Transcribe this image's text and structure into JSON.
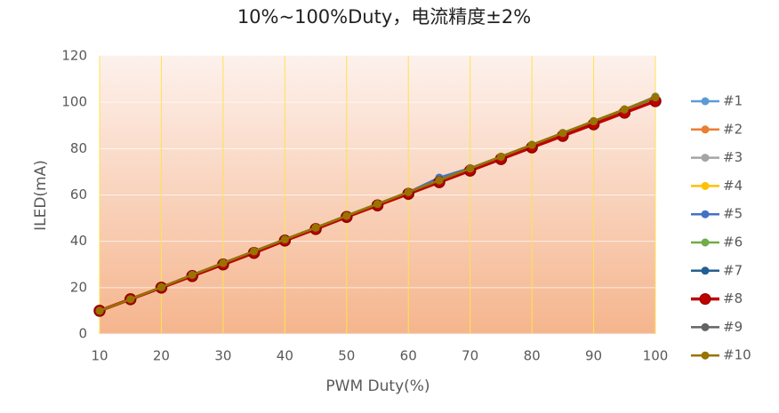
{
  "chart_data": {
    "type": "line",
    "title": "10%~100%Duty，电流精度±2%",
    "x_label": "PWM Duty(%)",
    "y_label": "ILED(mA)",
    "x": [
      10,
      15,
      20,
      25,
      30,
      35,
      40,
      45,
      50,
      55,
      60,
      65,
      70,
      75,
      80,
      85,
      90,
      95,
      100
    ],
    "xlim": [
      10,
      100
    ],
    "xticks": [
      10,
      20,
      30,
      40,
      50,
      60,
      70,
      80,
      90,
      100
    ],
    "ylim": [
      0,
      120
    ],
    "yticks": [
      0,
      20,
      40,
      60,
      80,
      100,
      120
    ],
    "grid": true,
    "legend": "right",
    "series": [
      {
        "name": "#1",
        "color": "#5b9bd5",
        "values": [
          10,
          15,
          20.2,
          25.5,
          30.6,
          35.7,
          40.8,
          45.9,
          51,
          56.1,
          61.2,
          66.3,
          71.4,
          76.5,
          81.6,
          86.7,
          91.8,
          96.9,
          102.5
        ]
      },
      {
        "name": "#2",
        "color": "#ed7d31",
        "values": [
          10,
          15,
          20.1,
          25.4,
          30.5,
          35.6,
          40.7,
          45.8,
          50.9,
          56,
          61.1,
          66.2,
          71.3,
          76.4,
          81.5,
          86.6,
          91.7,
          96.8,
          102
        ]
      },
      {
        "name": "#3",
        "color": "#a5a5a5",
        "values": [
          10,
          15,
          20.2,
          25.5,
          30.6,
          35.7,
          40.8,
          45.9,
          51,
          56.1,
          61.2,
          66.3,
          71.4,
          76.5,
          81.6,
          86.7,
          91.8,
          96.9,
          102.2
        ]
      },
      {
        "name": "#4",
        "color": "#ffc000",
        "values": [
          10,
          15,
          20.1,
          25.3,
          30.4,
          35.5,
          40.6,
          45.7,
          50.8,
          55.9,
          61,
          66.1,
          71.2,
          76.3,
          81.4,
          86.5,
          91.6,
          96.7,
          101.8
        ]
      },
      {
        "name": "#5",
        "color": "#4472c4",
        "values": [
          10,
          15,
          20.2,
          25.5,
          30.6,
          35.7,
          40.8,
          45.9,
          51,
          56.1,
          61.2,
          67.5,
          71.6,
          76.5,
          81.6,
          86.7,
          91.8,
          96.9,
          102
        ]
      },
      {
        "name": "#6",
        "color": "#70ad47",
        "values": [
          10,
          15,
          20.2,
          25.5,
          30.6,
          35.7,
          40.8,
          45.9,
          51.1,
          56.2,
          61.3,
          66.4,
          71.5,
          76.6,
          81.7,
          86.8,
          91.9,
          97,
          102.3
        ]
      },
      {
        "name": "#7",
        "color": "#255e91",
        "values": [
          10,
          15,
          20.1,
          25.4,
          30.5,
          35.6,
          40.7,
          45.8,
          50.9,
          56,
          61.1,
          66.2,
          71.3,
          76.4,
          81.5,
          86.6,
          91.7,
          96.8,
          101.9
        ]
      },
      {
        "name": "#8",
        "color": "#c00000",
        "values": [
          10,
          15,
          20,
          25,
          30,
          35,
          40.3,
          45.3,
          50.5,
          55.5,
          60.5,
          65.5,
          70.5,
          75.5,
          80.5,
          85.5,
          90.5,
          95.5,
          100.5
        ]
      },
      {
        "name": "#9",
        "color": "#636363",
        "values": [
          10,
          15,
          20.2,
          25.5,
          30.6,
          35.7,
          40.8,
          45.9,
          51,
          56.1,
          61.2,
          66.3,
          71.4,
          76.5,
          81.6,
          86.7,
          91.8,
          96.9,
          102.1
        ]
      },
      {
        "name": "#10",
        "color": "#997300",
        "values": [
          10,
          15,
          20.2,
          25.5,
          30.6,
          35.7,
          40.8,
          45.9,
          51,
          56.1,
          61.2,
          66.3,
          71.4,
          76.5,
          81.6,
          86.7,
          91.8,
          96.9,
          102.2
        ]
      }
    ]
  }
}
